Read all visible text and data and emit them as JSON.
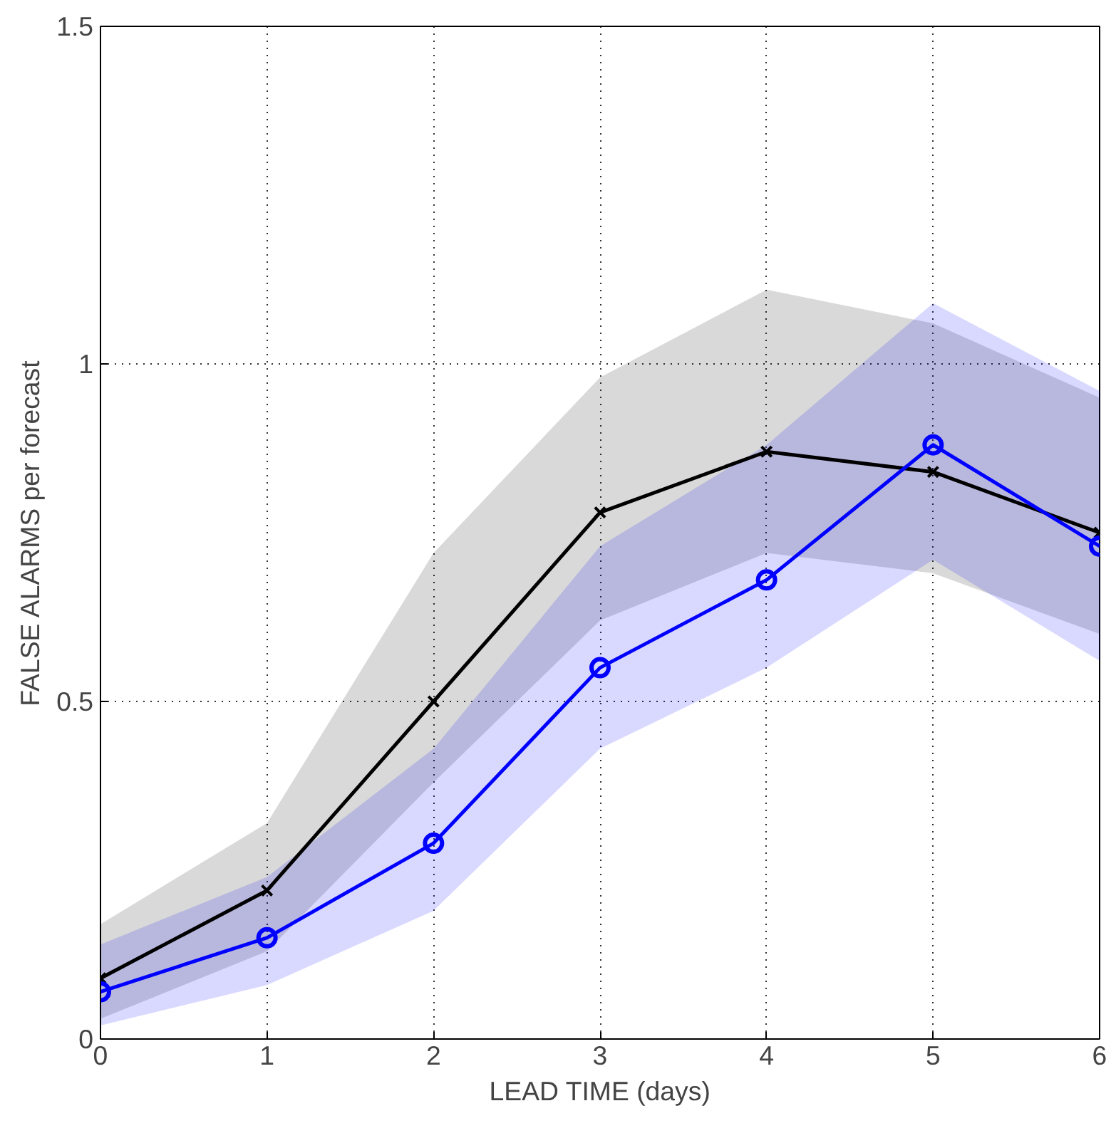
{
  "chart_data": {
    "type": "line",
    "xlabel": "LEAD TIME (days)",
    "ylabel": "FALSE ALARMS per forecast",
    "x": [
      0,
      1,
      2,
      3,
      4,
      5,
      6
    ],
    "xlim": [
      0,
      6
    ],
    "xticks": [
      0,
      1,
      2,
      3,
      4,
      5,
      6
    ],
    "ylim": [
      0,
      1.5
    ],
    "yticks": [
      0,
      0.5,
      1,
      1.5
    ],
    "grid": true,
    "line_style": "solid",
    "series": [
      {
        "color": "#000000",
        "marker": "cross",
        "values": [
          0.09,
          0.22,
          0.5,
          0.78,
          0.87,
          0.84,
          0.75
        ],
        "lower": [
          0.03,
          0.13,
          0.38,
          0.62,
          0.72,
          0.69,
          0.6
        ],
        "upper": [
          0.17,
          0.32,
          0.72,
          0.98,
          1.11,
          1.06,
          0.95
        ]
      },
      {
        "color": "#0000ff",
        "marker": "circle",
        "values": [
          0.07,
          0.15,
          0.29,
          0.55,
          0.68,
          0.88,
          0.73
        ],
        "lower": [
          0.02,
          0.08,
          0.19,
          0.43,
          0.55,
          0.71,
          0.56
        ],
        "upper": [
          0.14,
          0.24,
          0.43,
          0.73,
          0.88,
          1.09,
          0.96
        ]
      }
    ]
  }
}
